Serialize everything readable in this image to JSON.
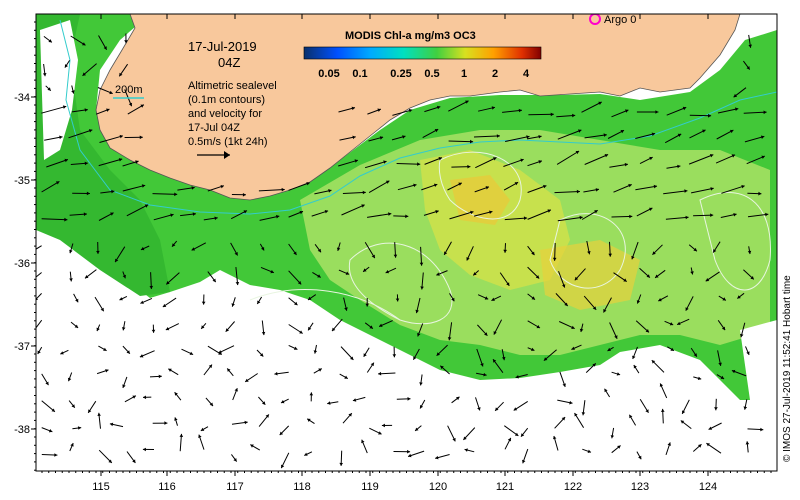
{
  "map": {
    "date_label": "17-Jul-2019",
    "time_label": "04Z",
    "contour_label": "200m",
    "description_lines": [
      "Altimetric sealevel",
      "(0.1m contours)",
      "and velocity for",
      "17-Jul 04Z",
      "0.5m/s (1kt 24h)"
    ],
    "argo_label": "Argo 0",
    "credit": "© IMOS 27-Jul-2019 11:52:41 Hobart time",
    "colors": {
      "land": "#f8c89c",
      "ocean_no_data": "#ffffff",
      "chl_low": "#17b81c",
      "chl_mid": "#9fe36a",
      "chl_high": "#f2c835",
      "isobath": "#33cccc",
      "ssh_contour": "#e8f5e0",
      "argo_marker": "#ff00cc"
    }
  },
  "colorbar": {
    "title": "MODIS Chl-a mg/m3 OC3",
    "scale": "log",
    "ticks": [
      "0.05",
      "0.1",
      "0.25",
      "0.5",
      "1",
      "2",
      "4"
    ],
    "colors": [
      "#08306b",
      "#0050ff",
      "#00aaff",
      "#00e0c0",
      "#40d040",
      "#d8e020",
      "#ffa000",
      "#e03000",
      "#800000"
    ]
  },
  "axes": {
    "x_ticks": [
      "115",
      "116",
      "117",
      "118",
      "119",
      "120",
      "121",
      "122",
      "123",
      "124"
    ],
    "y_ticks": [
      "-34",
      "-35",
      "-36",
      "-37",
      "-38"
    ]
  }
}
